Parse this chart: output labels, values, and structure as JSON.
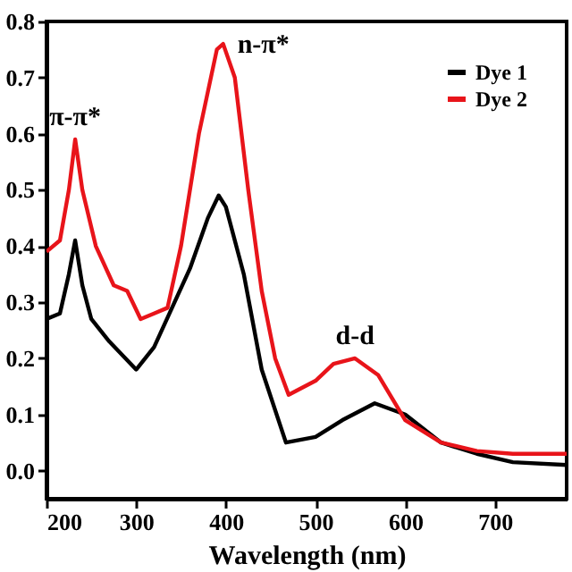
{
  "chart_data": {
    "type": "line",
    "xlabel": "Wavelength (nm)",
    "x": [
      200,
      215,
      225,
      232,
      240,
      250,
      270,
      300,
      320,
      340,
      360,
      380,
      392,
      400,
      420,
      440,
      467,
      500,
      530,
      566,
      600,
      640,
      680,
      720,
      780
    ],
    "series": [
      {
        "name": "Dye 1",
        "color": "#000000",
        "values": [
          0.27,
          0.28,
          0.35,
          0.41,
          0.33,
          0.27,
          0.23,
          0.18,
          0.22,
          0.29,
          0.36,
          0.45,
          0.49,
          0.47,
          0.35,
          0.18,
          0.05,
          0.06,
          0.09,
          0.12,
          0.1,
          0.05,
          0.03,
          0.015,
          0.01
        ]
      },
      {
        "name": "Dye 2",
        "color": "#e8141a",
        "x": [
          200,
          215,
          225,
          232,
          240,
          255,
          275,
          290,
          305,
          320,
          335,
          350,
          370,
          390,
          397,
          410,
          425,
          440,
          455,
          470,
          500,
          520,
          544,
          570,
          600,
          640,
          680,
          720,
          780
        ],
        "values": [
          0.39,
          0.41,
          0.5,
          0.59,
          0.5,
          0.4,
          0.33,
          0.32,
          0.27,
          0.28,
          0.29,
          0.4,
          0.6,
          0.75,
          0.76,
          0.7,
          0.5,
          0.32,
          0.2,
          0.135,
          0.16,
          0.19,
          0.2,
          0.17,
          0.09,
          0.05,
          0.035,
          0.03,
          0.03
        ]
      }
    ],
    "xlim": [
      200,
      780
    ],
    "xticks": [
      200,
      300,
      400,
      500,
      600,
      700
    ],
    "ylim": [
      -0.05,
      0.8
    ],
    "yticks": [
      {
        "value": 0,
        "label": "0.0"
      },
      0.1,
      0.2,
      0.3,
      0.4,
      0.5,
      0.6,
      0.7,
      0.8
    ],
    "annotations": [
      {
        "text": "π-π*",
        "x": 232,
        "y": 0.59
      },
      {
        "text": "n-π*",
        "x": 397,
        "y": 0.76
      },
      {
        "text": "d-d",
        "x": 544,
        "y": 0.2
      }
    ],
    "legend": "top right",
    "grid": false,
    "marker": "none",
    "line_style": "solid"
  }
}
